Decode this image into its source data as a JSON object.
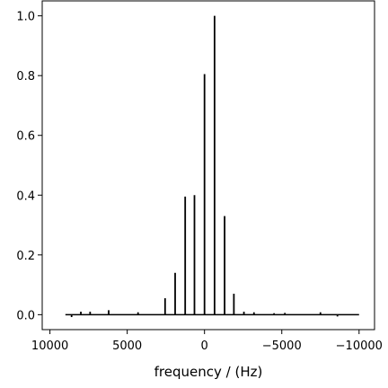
{
  "chart_data": {
    "type": "line",
    "title": "",
    "xlabel": "frequency / (Hz)",
    "ylabel": "",
    "x_reversed": true,
    "xlim": [
      10500,
      -11000
    ],
    "ylim": [
      -0.05,
      1.05
    ],
    "xticks": [
      10000,
      5000,
      0,
      -5000,
      -10000
    ],
    "xtick_labels": [
      "10000",
      "5000",
      "0",
      "−5000",
      "−10000"
    ],
    "yticks": [
      0.0,
      0.2,
      0.4,
      0.6,
      0.8,
      1.0
    ],
    "ytick_labels": [
      "0.0",
      "0.2",
      "0.4",
      "0.6",
      "0.8",
      "1.0"
    ],
    "grid": false,
    "baseline": {
      "x_start": 9000,
      "x_end": -10000,
      "y": 0.0
    },
    "series": [
      {
        "values_type": "stick",
        "x": [
          8600,
          8000,
          7400,
          6200,
          4300,
          2550,
          1900,
          1250,
          650,
          0,
          -650,
          -1300,
          -1900,
          -2550,
          -3200,
          -4500,
          -5200,
          -7500,
          -8600
        ],
        "y": [
          -0.008,
          0.01,
          0.01,
          0.015,
          0.008,
          0.055,
          0.14,
          0.395,
          0.4,
          0.805,
          1.0,
          0.33,
          0.07,
          0.01,
          0.008,
          0.005,
          0.006,
          0.008,
          -0.006
        ]
      }
    ],
    "colors": {
      "line": "#000000",
      "axes": "#000000",
      "background": "#ffffff"
    }
  }
}
